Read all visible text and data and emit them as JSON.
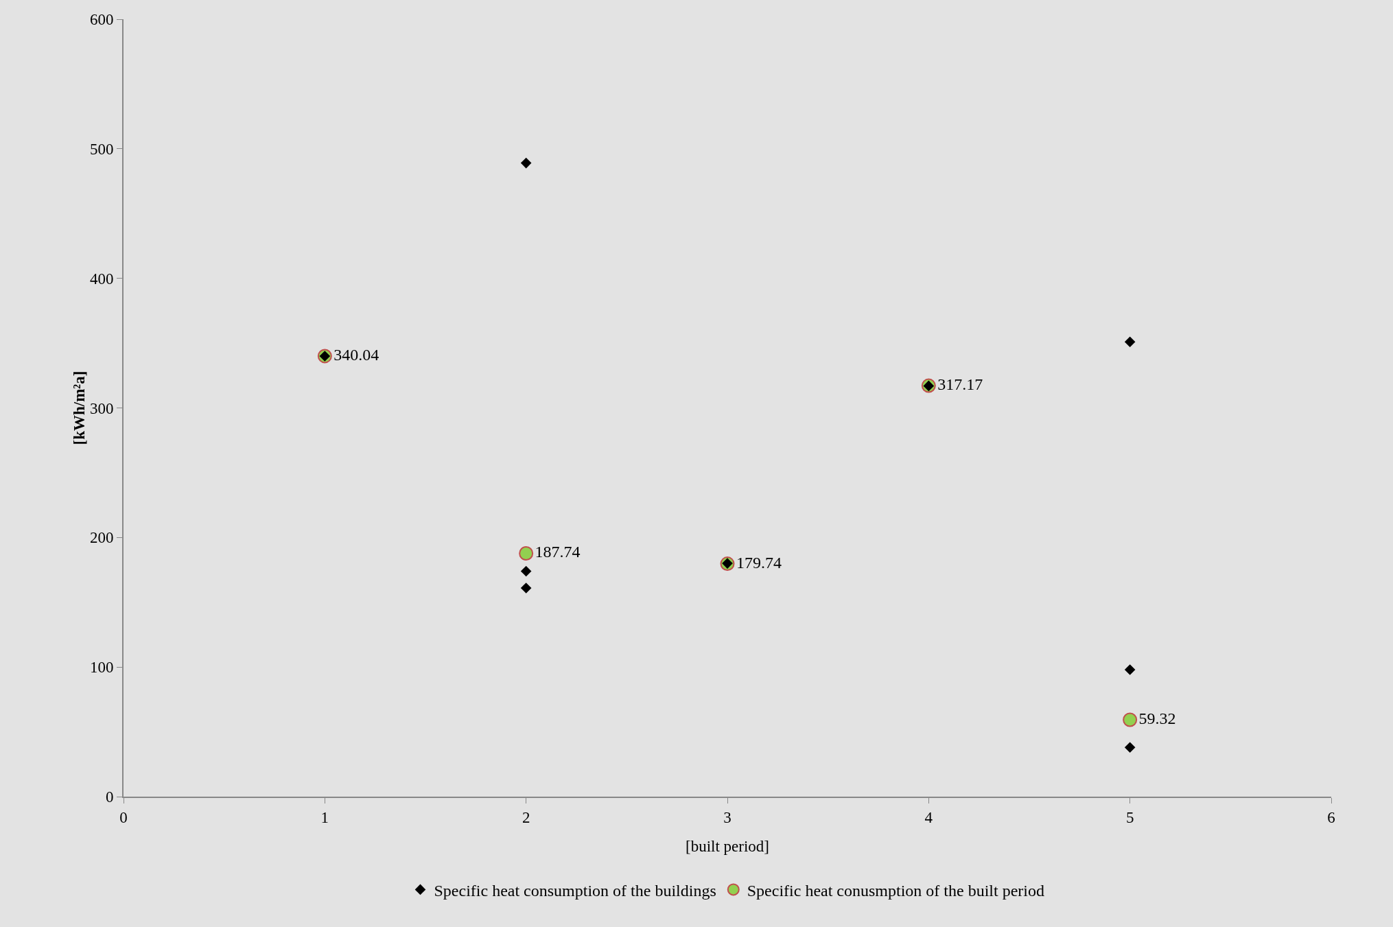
{
  "chart_data": {
    "type": "scatter",
    "xlabel": "[built period]",
    "ylabel": "[kWh/m²a]",
    "xlim": [
      0,
      6
    ],
    "xticks": [
      0,
      1,
      2,
      3,
      4,
      5,
      6
    ],
    "ylim": [
      0,
      600
    ],
    "yticks": [
      0,
      100,
      200,
      300,
      400,
      500,
      600
    ],
    "grid": false,
    "legend": "bottom",
    "series": [
      {
        "name": "Specific heat consumption of the buildings",
        "color": "#000000",
        "marker": "diamond",
        "x": [
          1,
          2,
          2,
          2,
          3,
          4,
          5,
          5,
          5
        ],
        "values": [
          340,
          489,
          174,
          161,
          180,
          317,
          351,
          98,
          38
        ]
      },
      {
        "name": "Specific heat conusmption of the built period",
        "color": "#92d050",
        "marker": "circle",
        "x": [
          1,
          2,
          3,
          4,
          5
        ],
        "values": [
          340.04,
          187.74,
          179.74,
          317.17,
          59.32
        ],
        "value_labels": [
          "340.04",
          "187.74",
          "179.74",
          "317.17",
          "59.32"
        ]
      }
    ]
  }
}
